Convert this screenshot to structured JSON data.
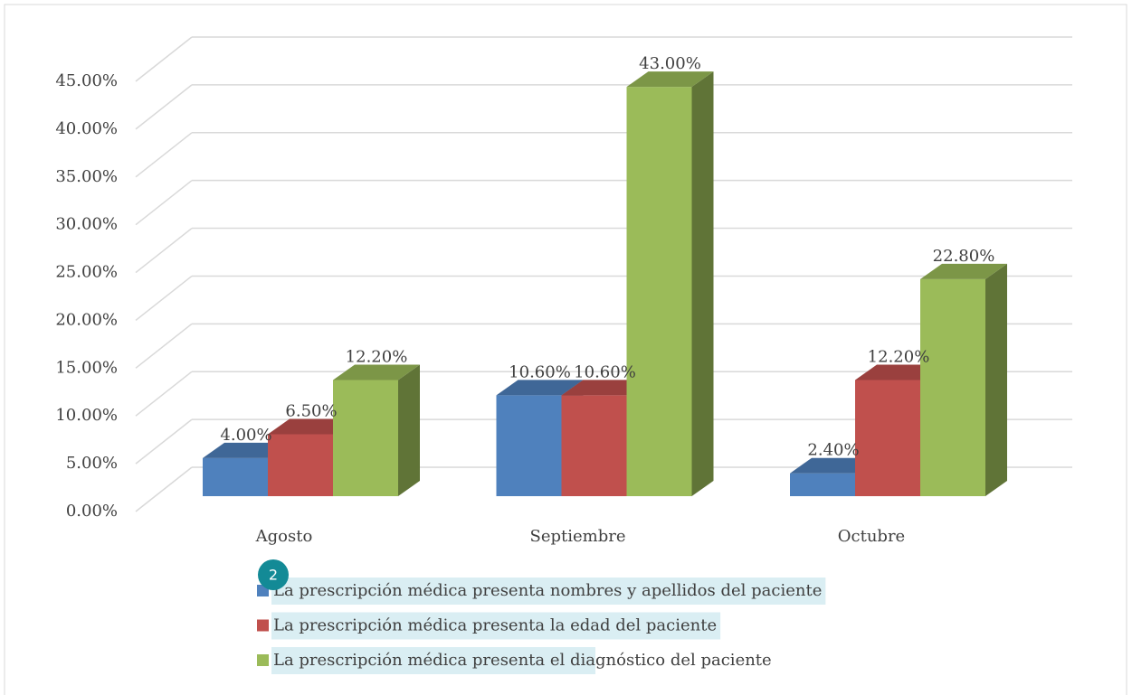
{
  "chart_data": {
    "type": "bar3d",
    "categories": [
      "Agosto",
      "Septiembre",
      "Octubre"
    ],
    "series": [
      {
        "name": "La prescripción médica presenta nombres y apellidos del paciente",
        "color": "#4f81bd",
        "values": [
          4.0,
          10.6,
          2.4
        ],
        "value_labels": [
          "4.00%",
          "10.60%",
          "2.40%"
        ]
      },
      {
        "name": "La prescripción médica presenta la edad del paciente",
        "color": "#c0504d",
        "values": [
          6.5,
          10.6,
          12.2
        ],
        "value_labels": [
          "6.50%",
          "10.60%",
          "12.20%"
        ]
      },
      {
        "name": "La prescripción médica presenta el diagnóstico del paciente",
        "color": "#9bbb59",
        "values": [
          12.2,
          43.0,
          22.8
        ],
        "value_labels": [
          "12.20%",
          "43.00%",
          "22.80%"
        ]
      }
    ],
    "ylim": [
      0,
      45
    ],
    "yticks": [
      {
        "value": 0,
        "label": "0.00%"
      },
      {
        "value": 5,
        "label": "5.00%"
      },
      {
        "value": 10,
        "label": "10.00%"
      },
      {
        "value": 15,
        "label": "15.00%"
      },
      {
        "value": 20,
        "label": "20.00%"
      },
      {
        "value": 25,
        "label": "25.00%"
      },
      {
        "value": 30,
        "label": "30.00%"
      },
      {
        "value": 35,
        "label": "35.00%"
      },
      {
        "value": 40,
        "label": "40.00%"
      },
      {
        "value": 45,
        "label": "45.00%"
      }
    ],
    "grid": true,
    "legend": "bottom",
    "badge": "2"
  }
}
